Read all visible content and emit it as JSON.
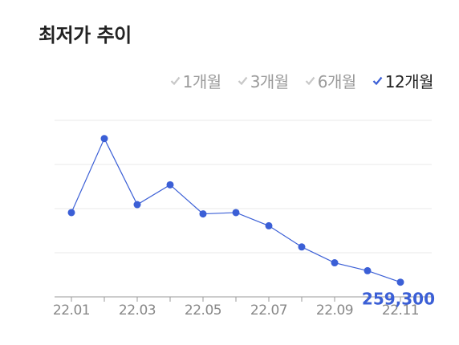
{
  "header": {
    "title": "최저가 추이"
  },
  "period_tabs": [
    {
      "label": "1개월",
      "active": false
    },
    {
      "label": "3개월",
      "active": false
    },
    {
      "label": "6개월",
      "active": false
    },
    {
      "label": "12개월",
      "active": true
    }
  ],
  "colors": {
    "accent": "#3b5fd6",
    "inactive": "#c8c8c8",
    "grid": "#e9e9e9",
    "axis": "#999999"
  },
  "chart_data": {
    "type": "line",
    "x": [
      "22.01",
      "22.02",
      "22.03",
      "22.04",
      "22.05",
      "22.06",
      "22.07",
      "22.08",
      "22.09",
      "22.10",
      "22.11"
    ],
    "values": [
      312000,
      368000,
      318000,
      333000,
      311000,
      312000,
      302000,
      286000,
      274000,
      268000,
      259300
    ],
    "xtick_labels": [
      "22.01",
      "22.03",
      "22.05",
      "22.07",
      "22.09",
      "22.11"
    ],
    "last_value_label": "259,300",
    "ylim": [
      230000,
      400000
    ],
    "grid": true
  }
}
